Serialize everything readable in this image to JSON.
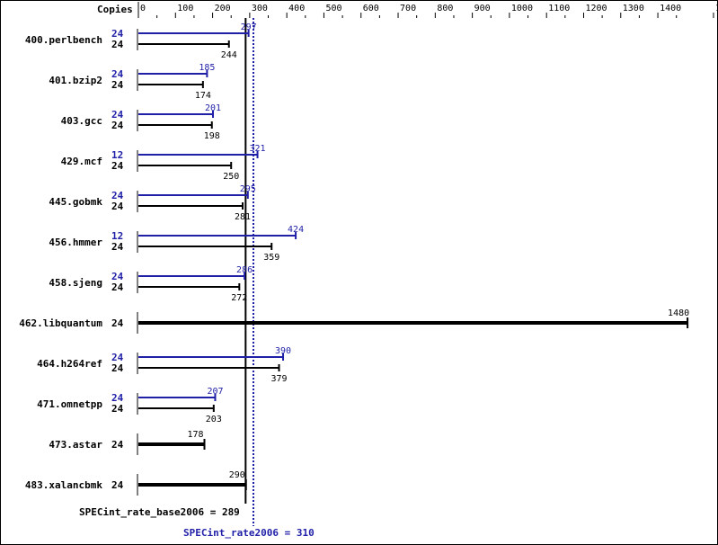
{
  "chart_data": {
    "type": "bar",
    "orientation": "horizontal",
    "column_header": "Copies",
    "xlim": [
      0,
      1550
    ],
    "xticks": [
      0,
      100,
      200,
      300,
      400,
      500,
      600,
      700,
      800,
      900,
      1000,
      1100,
      1200,
      1300,
      1400,
      1550
    ],
    "grid": false,
    "colors": {
      "peak": "#1f1fa8",
      "base": "#000000"
    },
    "benchmarks": [
      {
        "name": "400.perlbench",
        "peak_copies": "24",
        "peak": 297,
        "base_copies": "24",
        "base": 244
      },
      {
        "name": "401.bzip2",
        "peak_copies": "24",
        "peak": 185,
        "base_copies": "24",
        "base": 174
      },
      {
        "name": "403.gcc",
        "peak_copies": "24",
        "peak": 201,
        "base_copies": "24",
        "base": 198
      },
      {
        "name": "429.mcf",
        "peak_copies": "12",
        "peak": 321,
        "base_copies": "24",
        "base": 250
      },
      {
        "name": "445.gobmk",
        "peak_copies": "24",
        "peak": 295,
        "base_copies": "24",
        "base": 281
      },
      {
        "name": "456.hmmer",
        "peak_copies": "12",
        "peak": 424,
        "base_copies": "24",
        "base": 359
      },
      {
        "name": "458.sjeng",
        "peak_copies": "24",
        "peak": 286,
        "base_copies": "24",
        "base": 272
      },
      {
        "name": "462.libquantum",
        "peak_copies": null,
        "peak": null,
        "base_copies": "24",
        "base": 1480
      },
      {
        "name": "464.h264ref",
        "peak_copies": "24",
        "peak": 390,
        "base_copies": "24",
        "base": 379
      },
      {
        "name": "471.omnetpp",
        "peak_copies": "24",
        "peak": 207,
        "base_copies": "24",
        "base": 203
      },
      {
        "name": "473.astar",
        "peak_copies": null,
        "peak": null,
        "base_copies": "24",
        "base": 178
      },
      {
        "name": "483.xalancbmk",
        "peak_copies": null,
        "peak": null,
        "base_copies": "24",
        "base": 290
      }
    ],
    "base_summary": {
      "label": "SPECint_rate_base2006 = 289",
      "value": 289
    },
    "peak_summary": {
      "label": "SPECint_rate2006 = 310",
      "value": 310
    }
  }
}
